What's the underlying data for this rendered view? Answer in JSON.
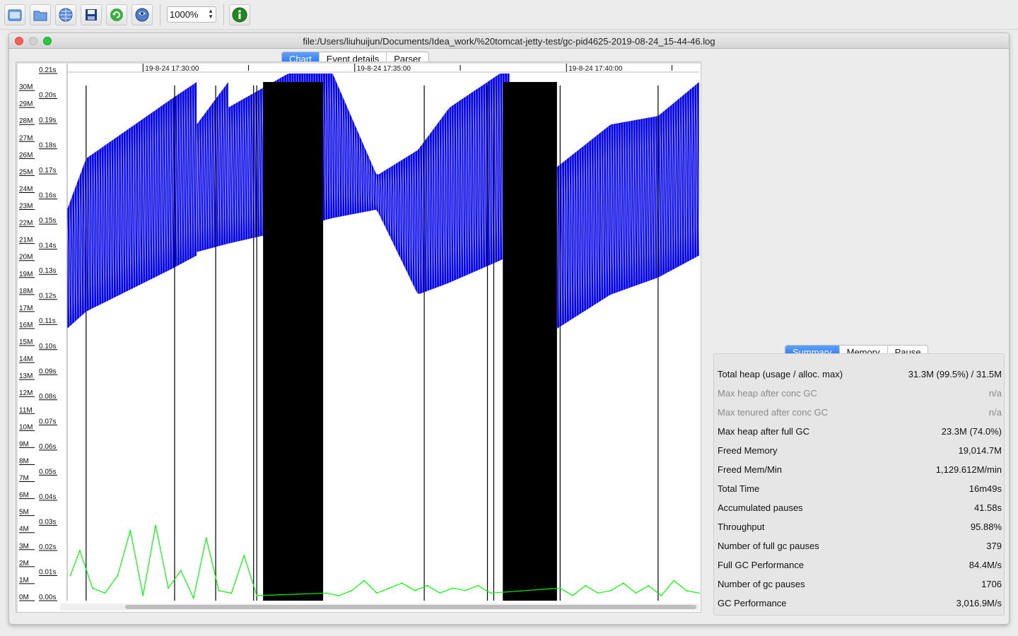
{
  "toolbar": {
    "buttons": [
      "open-file-icon",
      "open-folder-icon",
      "open-url-icon",
      "save-icon",
      "reload-icon",
      "watch-icon",
      "about-icon"
    ],
    "zoom_value": "1000%"
  },
  "window": {
    "title": "file:/Users/liuhuijun/Documents/Idea_work/%20tomcat-jetty-test/gc-pid4625-2019-08-24_15-44-46.log",
    "tabs": [
      "Chart",
      "Event details",
      "Parser"
    ],
    "active_tab": "Chart"
  },
  "chart_data": {
    "type": "line",
    "x_tick_labels": [
      "19-8-24 17:30:00",
      "19-8-24 17:35:00",
      "19-8-24 17:40:00"
    ],
    "y_memory_labels": [
      "0M",
      "1M",
      "2M",
      "3M",
      "4M",
      "5M",
      "6M",
      "7M",
      "8M",
      "9M",
      "10M",
      "11M",
      "12M",
      "13M",
      "14M",
      "15M",
      "16M",
      "17M",
      "18M",
      "19M",
      "20M",
      "21M",
      "22M",
      "23M",
      "24M",
      "25M",
      "26M",
      "27M",
      "28M",
      "29M",
      "30M"
    ],
    "y_pause_labels": [
      "0.00s",
      "0.01s",
      "0.02s",
      "0.03s",
      "0.04s",
      "0.05s",
      "0.06s",
      "0.07s",
      "0.08s",
      "0.09s",
      "0.10s",
      "0.11s",
      "0.12s",
      "0.13s",
      "0.14s",
      "0.15s",
      "0.16s",
      "0.17s",
      "0.18s",
      "0.19s",
      "0.20s",
      "0.21s"
    ],
    "ylim_memory": [
      0,
      31
    ],
    "ylim_pause": [
      0,
      0.21
    ],
    "series": [
      {
        "name": "used heap",
        "color": "#0000ff",
        "segments": [
          {
            "t": [
              0.0,
              0.03,
              0.165,
              0.205
            ],
            "low": [
              16.0,
              17.0,
              19.5,
              20.3
            ],
            "high": [
              23.0,
              26.0,
              29.5,
              30.5
            ]
          },
          {
            "t": [
              0.205,
              0.255
            ],
            "low": [
              20.5,
              21.0
            ],
            "high": [
              28.0,
              30.5
            ]
          },
          {
            "t": [
              0.255,
              0.35,
              0.42,
              0.49,
              0.555,
              0.605,
              0.685,
              0.7
            ],
            "low": [
              21.0,
              21.8,
              22.5,
              23.0,
              18.0,
              18.7,
              20.0,
              20.3
            ],
            "high": [
              29.0,
              31.0,
              31.0,
              25.0,
              26.5,
              29.0,
              31.0,
              31.0
            ]
          },
          {
            "t": [
              0.775,
              0.86,
              0.935,
              1.0
            ],
            "low": [
              16.0,
              18.0,
              19.0,
              20.3
            ],
            "high": [
              25.5,
              28.0,
              28.5,
              30.5
            ]
          }
        ]
      },
      {
        "name": "full gc region",
        "color": "#000000",
        "bands": [
          [
            0.31,
            0.405
          ],
          [
            0.69,
            0.775
          ]
        ]
      },
      {
        "name": "pause",
        "color": "#00ff00",
        "times": [
          0.005,
          0.02,
          0.04,
          0.06,
          0.08,
          0.1,
          0.12,
          0.14,
          0.16,
          0.18,
          0.2,
          0.22,
          0.24,
          0.26,
          0.28,
          0.3,
          0.41,
          0.43,
          0.45,
          0.47,
          0.49,
          0.51,
          0.53,
          0.55,
          0.57,
          0.59,
          0.61,
          0.63,
          0.65,
          0.67,
          0.78,
          0.8,
          0.82,
          0.84,
          0.86,
          0.88,
          0.9,
          0.92,
          0.94,
          0.96,
          0.98,
          1.0
        ],
        "values": [
          0.01,
          0.02,
          0.005,
          0.003,
          0.01,
          0.028,
          0.002,
          0.03,
          0.005,
          0.012,
          0.001,
          0.025,
          0.004,
          0.003,
          0.018,
          0.002,
          0.003,
          0.002,
          0.004,
          0.008,
          0.003,
          0.005,
          0.007,
          0.004,
          0.006,
          0.003,
          0.005,
          0.004,
          0.006,
          0.003,
          0.005,
          0.002,
          0.006,
          0.003,
          0.004,
          0.007,
          0.003,
          0.006,
          0.002,
          0.008,
          0.004,
          0.003
        ]
      }
    ]
  },
  "summary": {
    "tabs": [
      "Summary",
      "Memory",
      "Pause"
    ],
    "active_tab": "Summary",
    "rows": [
      {
        "label": "Total heap (usage / alloc. max)",
        "value": "31.3M (99.5%) / 31.5M",
        "dim": false
      },
      {
        "label": "Max heap after conc GC",
        "value": "n/a",
        "dim": true
      },
      {
        "label": "Max tenured after conc GC",
        "value": "n/a",
        "dim": true
      },
      {
        "label": "Max heap after full GC",
        "value": "23.3M (74.0%)",
        "dim": false
      },
      {
        "label": "Freed Memory",
        "value": "19,014.7M",
        "dim": false
      },
      {
        "label": "Freed Mem/Min",
        "value": "1,129.612M/min",
        "dim": false
      },
      {
        "label": "Total Time",
        "value": "16m49s",
        "dim": false
      },
      {
        "label": "Accumulated pauses",
        "value": "41.58s",
        "dim": false
      },
      {
        "label": "Throughput",
        "value": "95.88%",
        "dim": false
      },
      {
        "label": "Number of full gc pauses",
        "value": "379",
        "dim": false
      },
      {
        "label": "Full GC Performance",
        "value": "84.4M/s",
        "dim": false
      },
      {
        "label": "Number of gc pauses",
        "value": "1706",
        "dim": false
      },
      {
        "label": "GC Performance",
        "value": "3,016.9M/s",
        "dim": false
      }
    ]
  }
}
